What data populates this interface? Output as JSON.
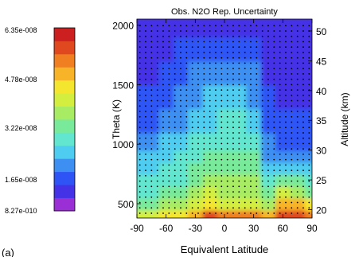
{
  "chart_data": {
    "type": "heatmap",
    "title": "Obs. N2O Rep. Uncertainty",
    "xlabel": "Equivalent Latitude",
    "ylabel_left": "Theta (K)",
    "ylabel_right": "Altitude (km)",
    "x_ticks": [
      -90,
      -60,
      -30,
      0,
      30,
      60,
      90
    ],
    "y_left_ticks": [
      500,
      1000,
      1500,
      2000
    ],
    "y_right_ticks": [
      20,
      25,
      30,
      35,
      40,
      45,
      50
    ],
    "xlim": [
      -90,
      90
    ],
    "ylim_left": [
      380,
      2050
    ],
    "ylim_right": [
      18.6,
      52
    ],
    "colorbar_labels": [
      "6.35e-008",
      "4.78e-008",
      "3.22e-008",
      "1.65e-008",
      "8.27e-010"
    ],
    "colorbar_range": [
      8.27e-10,
      6.35e-08
    ],
    "panel_label": "(a)",
    "colors": [
      "#9b2fd6",
      "#4433e6",
      "#2f54f5",
      "#3d90f2",
      "#4fcdf0",
      "#62e6cf",
      "#79ea9a",
      "#a7ec63",
      "#d4ee40",
      "#f4e62e",
      "#f8b428",
      "#f07f22",
      "#e04820",
      "#cc2020"
    ],
    "field": {
      "x": [
        -90,
        -75,
        -60,
        -45,
        -30,
        -15,
        0,
        15,
        30,
        45,
        60,
        75,
        90
      ],
      "theta": [
        400,
        500,
        600,
        700,
        800,
        900,
        1000,
        1200,
        1400,
        1600,
        1800,
        2000
      ],
      "z": [
        [
          8,
          8,
          9,
          9,
          10,
          12,
          11,
          11,
          11,
          10,
          12,
          12,
          11
        ],
        [
          6,
          6,
          7,
          7,
          8,
          9,
          8,
          8,
          8,
          7,
          10,
          10,
          9
        ],
        [
          5,
          5,
          6,
          6,
          7,
          8,
          7,
          7,
          7,
          6,
          8,
          7,
          6
        ],
        [
          5,
          5,
          5,
          5,
          6,
          7,
          7,
          7,
          7,
          5,
          6,
          6,
          5
        ],
        [
          4,
          4,
          5,
          5,
          6,
          6,
          6,
          6,
          6,
          4,
          4,
          4,
          4
        ],
        [
          4,
          4,
          4,
          5,
          5,
          6,
          6,
          6,
          6,
          3,
          3,
          3,
          3
        ],
        [
          3,
          3,
          4,
          4,
          5,
          5,
          5,
          5,
          5,
          3,
          2,
          2,
          2
        ],
        [
          2,
          2,
          3,
          3,
          4,
          4,
          5,
          5,
          4,
          2,
          2,
          2,
          2
        ],
        [
          2,
          2,
          2,
          3,
          3,
          4,
          4,
          4,
          3,
          2,
          1,
          1,
          1
        ],
        [
          1,
          1,
          2,
          2,
          3,
          3,
          3,
          3,
          3,
          1,
          1,
          1,
          1
        ],
        [
          1,
          1,
          1,
          2,
          2,
          2,
          2,
          2,
          2,
          1,
          1,
          1,
          1
        ],
        [
          1,
          1,
          1,
          1,
          1,
          1,
          1,
          1,
          1,
          1,
          1,
          1,
          1
        ]
      ]
    }
  }
}
